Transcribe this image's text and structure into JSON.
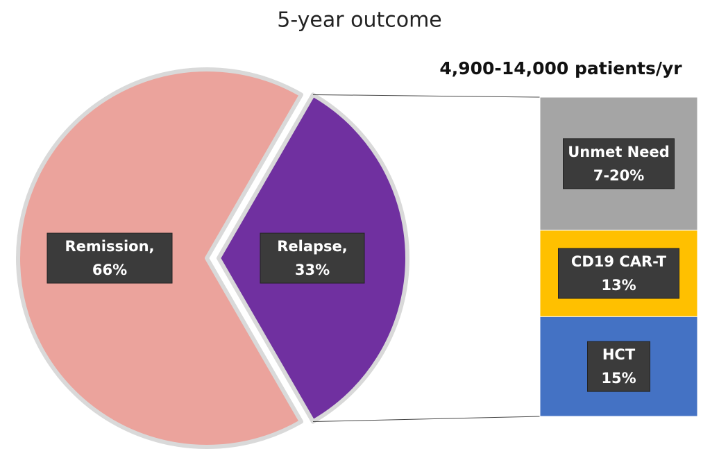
{
  "chart_data": {
    "type": "pie-of-bar",
    "title": "5-year outcome",
    "categories": [
      "Remission,",
      "Relapse,"
    ],
    "values": [
      66,
      33
    ],
    "value_labels": [
      "66%",
      "33%"
    ],
    "colors": [
      "#eba39c",
      "#7030a0"
    ],
    "bar": {
      "title": "4,900-14,000 patients/yr",
      "categories": [
        "HCT",
        "CD19  CAR-T",
        "Unmet Need"
      ],
      "values": [
        15,
        13,
        [
          7,
          20
        ]
      ],
      "value_labels": [
        "15%",
        "13%",
        "7-20%"
      ],
      "colors": [
        "#4472c4",
        "#ffc000",
        "#a5a5a5"
      ]
    }
  }
}
